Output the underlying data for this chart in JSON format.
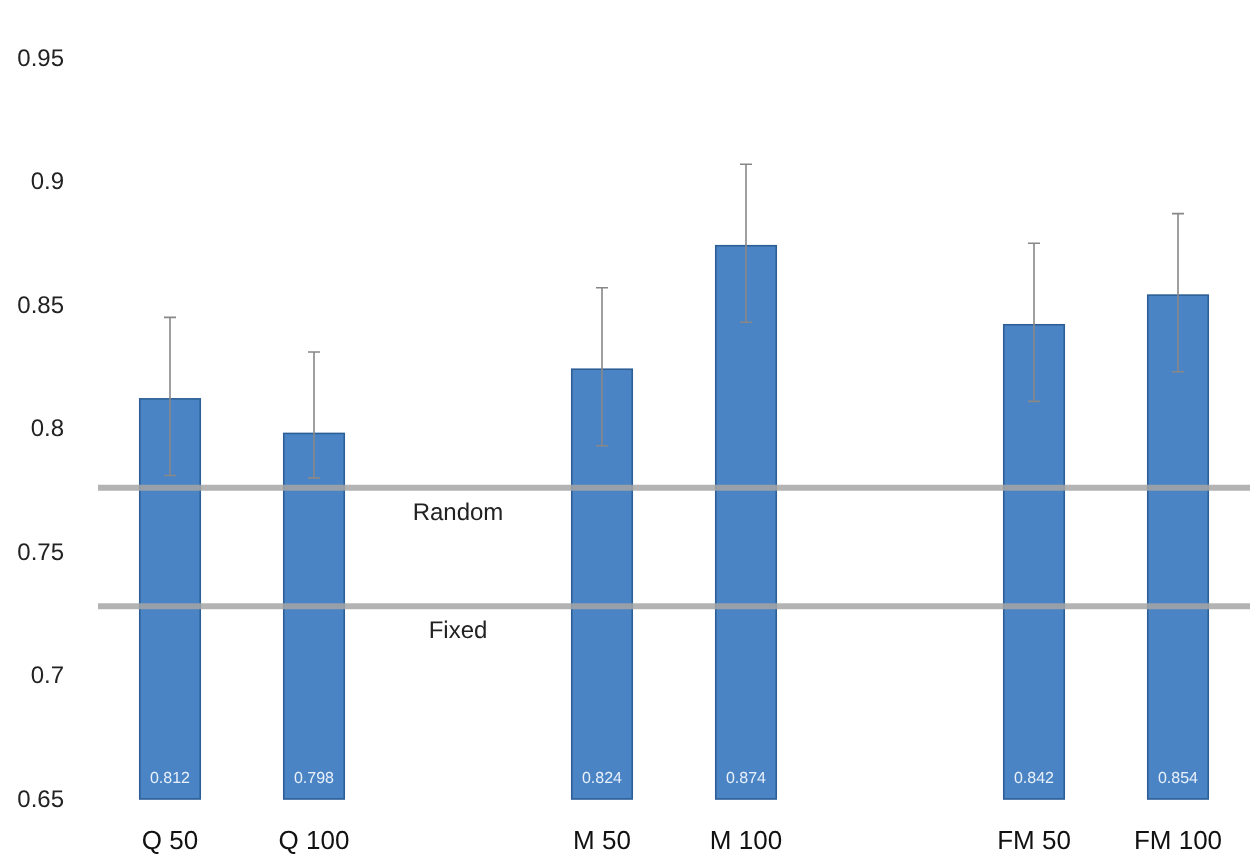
{
  "chart_data": {
    "type": "bar",
    "categories": [
      "Q 50",
      "Q 100",
      null,
      "M 50",
      "M 100",
      null,
      "FM 50",
      "FM 100"
    ],
    "values": [
      0.812,
      0.798,
      null,
      0.824,
      0.874,
      null,
      0.842,
      0.854
    ],
    "errors": [
      [
        0.781,
        0.845
      ],
      [
        0.78,
        0.831
      ],
      null,
      [
        0.793,
        0.857
      ],
      [
        0.843,
        0.907
      ],
      null,
      [
        0.811,
        0.875
      ],
      [
        0.823,
        0.887
      ]
    ],
    "color": "#4a84c4",
    "data_labels": true,
    "ylim": [
      0.65,
      0.95
    ],
    "yticks": [
      0.65,
      0.7,
      0.75,
      0.8,
      0.85,
      0.9,
      0.95
    ],
    "ref_lines": [
      {
        "axis": "y",
        "value": 0.776,
        "label": "Random",
        "color": "#a6a6a6"
      },
      {
        "axis": "y",
        "value": 0.728,
        "label": "Fixed",
        "color": "#a6a6a6"
      }
    ],
    "grid": false
  }
}
